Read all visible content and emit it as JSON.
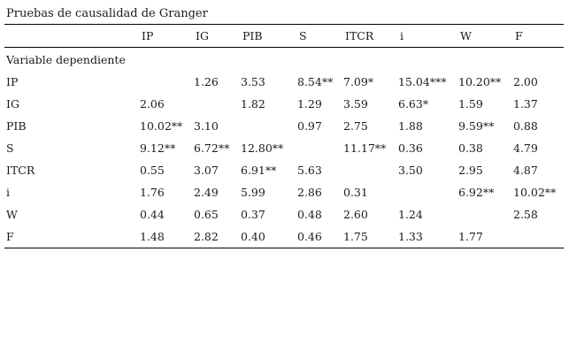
{
  "title": "Pruebas de causalidad de Granger",
  "columns": [
    "IP",
    "IG",
    "PIB",
    "S",
    "ITCR",
    "i",
    "W",
    "F"
  ],
  "dependent_label": "Variable dependiente",
  "rows": [
    {
      "label": "IP",
      "cells": [
        "",
        "1.26",
        "3.53",
        "8.54**",
        "7.09*",
        "15.04***",
        "10.20**",
        "2.00"
      ]
    },
    {
      "label": "IG",
      "cells": [
        "2.06",
        "",
        "1.82",
        "1.29",
        "3.59",
        "6.63*",
        "1.59",
        "1.37"
      ]
    },
    {
      "label": "PIB",
      "cells": [
        "10.02**",
        "3.10",
        "",
        "0.97",
        "2.75",
        "1.88",
        "9.59**",
        "0.88"
      ]
    },
    {
      "label": "S",
      "cells": [
        "9.12**",
        "6.72**",
        "12.80**",
        "",
        "11.17**",
        "0.36",
        "0.38",
        "4.79"
      ]
    },
    {
      "label": "ITCR",
      "cells": [
        "0.55",
        "3.07",
        "6.91**",
        "5.63",
        "",
        "3.50",
        "2.95",
        "4.87"
      ]
    },
    {
      "label": "i",
      "cells": [
        "1.76",
        "2.49",
        "5.99",
        "2.86",
        "0.31",
        "",
        "6.92**",
        "10.02**"
      ]
    },
    {
      "label": "W",
      "cells": [
        "0.44",
        "0.65",
        "0.37",
        "0.48",
        "2.60",
        "1.24",
        "",
        "2.58"
      ]
    },
    {
      "label": "F",
      "cells": [
        "1.48",
        "2.82",
        "0.40",
        "0.46",
        "1.75",
        "1.33",
        "1.77",
        ""
      ]
    }
  ]
}
